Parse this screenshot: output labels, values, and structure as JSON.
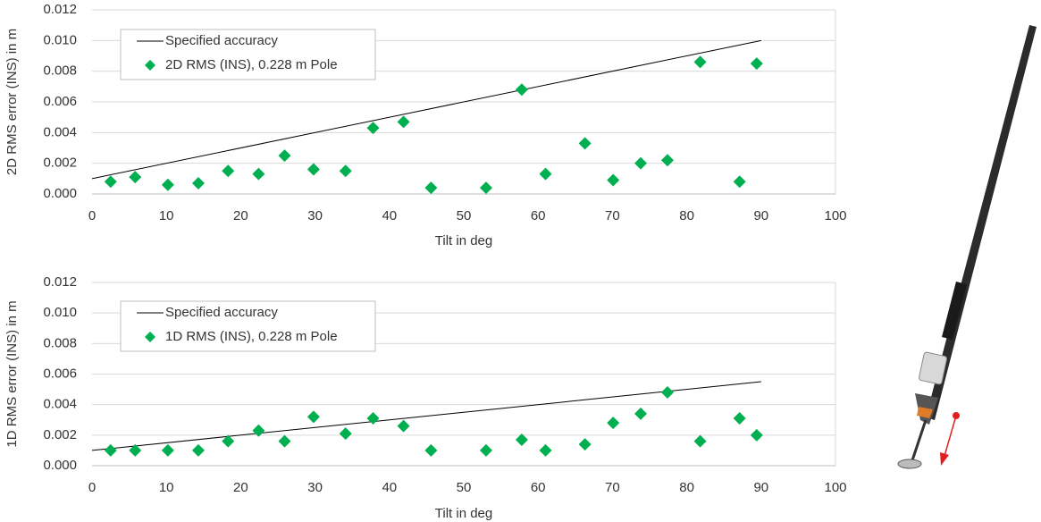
{
  "chart_data": [
    {
      "type": "scatter",
      "xlabel": "Tilt in deg",
      "ylabel": "2D RMS error (INS) in m",
      "xlim": [
        0,
        100
      ],
      "xticks": [
        0,
        10,
        20,
        30,
        40,
        50,
        60,
        70,
        80,
        90,
        100
      ],
      "ylim": [
        0,
        0.012
      ],
      "yticks": [
        {
          "value": 0,
          "label": "0.000"
        },
        {
          "value": 0.002,
          "label": "0.002"
        },
        {
          "value": 0.004,
          "label": "0.004"
        },
        {
          "value": 0.006,
          "label": "0.006"
        },
        {
          "value": 0.008,
          "label": "0.008"
        },
        {
          "value": 0.01,
          "label": "0.010"
        },
        {
          "value": 0.012,
          "label": "0.012"
        }
      ],
      "grid": true,
      "legend": "upper left",
      "series": [
        {
          "name": "Specified accuracy",
          "mode": "line",
          "color": "#000000",
          "x": [
            0,
            90
          ],
          "values": [
            0.001,
            0.01
          ]
        },
        {
          "name": "2D RMS (INS), 0.228 m Pole",
          "mode": "markers",
          "color": "#00b050",
          "x": [
            2.5,
            5.8,
            10.2,
            14.3,
            18.3,
            22.4,
            25.9,
            29.8,
            34.1,
            37.8,
            41.9,
            45.6,
            53,
            57.8,
            61,
            66.3,
            70.1,
            73.8,
            77.4,
            81.8,
            87.1,
            89.4
          ],
          "values": [
            0.0008,
            0.0011,
            0.0006,
            0.0007,
            0.0015,
            0.0013,
            0.0025,
            0.0016,
            0.0015,
            0.0043,
            0.0047,
            0.0004,
            0.0004,
            0.0068,
            0.0013,
            0.0033,
            0.0009,
            0.002,
            0.0022,
            0.0086,
            0.0008,
            0.0085
          ]
        }
      ]
    },
    {
      "type": "scatter",
      "xlabel": "Tilt in deg",
      "ylabel": "1D RMS error (INS) in m",
      "xlim": [
        0,
        100
      ],
      "xticks": [
        0,
        10,
        20,
        30,
        40,
        50,
        60,
        70,
        80,
        90,
        100
      ],
      "ylim": [
        0,
        0.012
      ],
      "yticks": [
        {
          "value": 0,
          "label": "0.000"
        },
        {
          "value": 0.002,
          "label": "0.002"
        },
        {
          "value": 0.004,
          "label": "0.004"
        },
        {
          "value": 0.006,
          "label": "0.006"
        },
        {
          "value": 0.008,
          "label": "0.008"
        },
        {
          "value": 0.01,
          "label": "0.010"
        },
        {
          "value": 0.012,
          "label": "0.012"
        }
      ],
      "grid": true,
      "legend": "upper left",
      "series": [
        {
          "name": "Specified accuracy",
          "mode": "line",
          "color": "#000000",
          "x": [
            0,
            90
          ],
          "values": [
            0.001,
            0.0055
          ]
        },
        {
          "name": "1D RMS (INS), 0.228 m Pole",
          "mode": "markers",
          "color": "#00b050",
          "x": [
            2.5,
            5.8,
            10.2,
            14.3,
            18.3,
            22.4,
            25.9,
            29.8,
            34.1,
            37.8,
            41.9,
            45.6,
            53,
            57.8,
            61,
            66.3,
            70.1,
            73.8,
            77.4,
            81.8,
            87.1,
            89.4
          ],
          "values": [
            0.001,
            0.001,
            0.001,
            0.001,
            0.0016,
            0.0023,
            0.0016,
            0.0032,
            0.0021,
            0.0031,
            0.0026,
            0.001,
            0.001,
            0.0017,
            0.001,
            0.0014,
            0.0028,
            0.0034,
            0.0048,
            0.0016,
            0.0031,
            0.002
          ]
        }
      ]
    }
  ]
}
